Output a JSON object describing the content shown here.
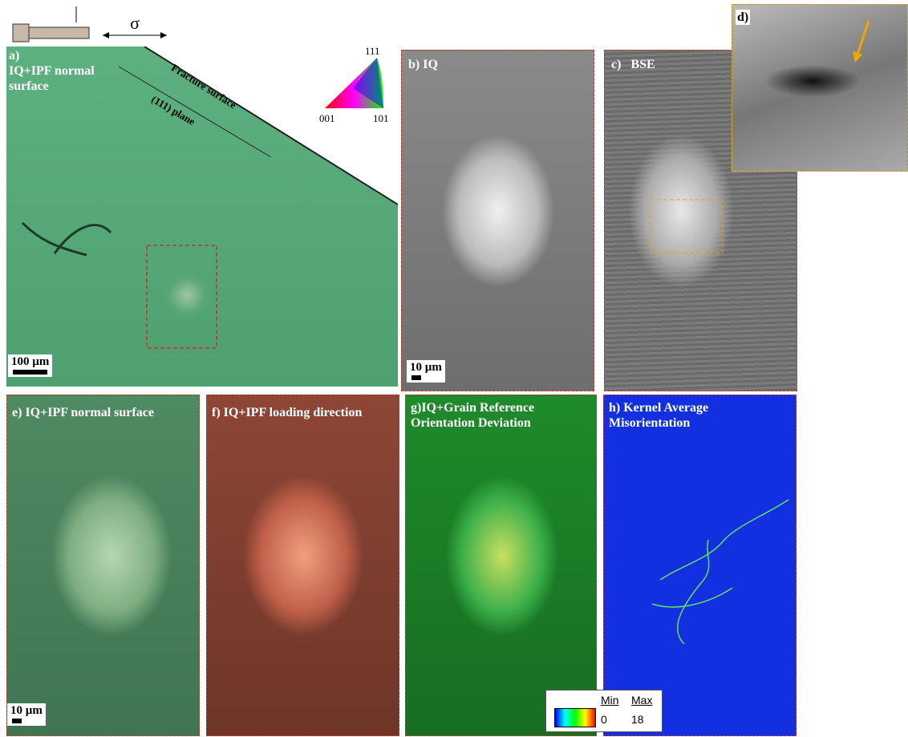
{
  "top": {
    "sigma": "σ"
  },
  "panels": [
    {
      "label": "a)",
      "title": "IQ+IPF normal surface",
      "annotations": [
        "Fracture surface",
        "(111) plane"
      ],
      "scale_bar": "100 µm"
    },
    {
      "label": "b)",
      "title": "IQ",
      "scale_bar": "10 µm"
    },
    {
      "label": "c)",
      "title": "BSE"
    },
    {
      "label": "d)"
    },
    {
      "label": "e)",
      "title": "IQ+IPF normal surface",
      "scale_bar": "10 µm"
    },
    {
      "label": "f)",
      "title": "IQ+IPF loading direction"
    },
    {
      "label": "g)",
      "title": "IQ+Grain Reference Orientation Deviation"
    },
    {
      "label": "h)",
      "title": "Kernel Average Misorientation"
    }
  ],
  "ipf_key": {
    "top": "111",
    "left": "001",
    "right": "101"
  },
  "colorbar": {
    "min_label": "Min",
    "max_label": "Max",
    "min": 0,
    "max": 18
  }
}
